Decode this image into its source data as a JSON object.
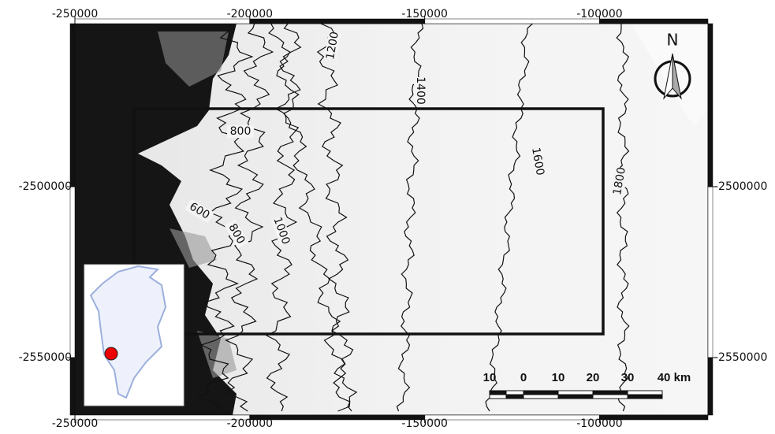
{
  "map": {
    "xlim": [
      -250000,
      -69000
    ],
    "ylim": [
      -2566800,
      -2452300
    ],
    "xticks": [
      -250000,
      -200000,
      -150000,
      -100000
    ],
    "yticks": [
      -2500000,
      -2550000
    ],
    "contour_labels": [
      800,
      1200,
      1400,
      1600,
      1800,
      600,
      800,
      1000
    ],
    "north_label": "N",
    "scale_labels": [
      "10",
      "0",
      "10",
      "20",
      "30",
      "40 km"
    ]
  }
}
